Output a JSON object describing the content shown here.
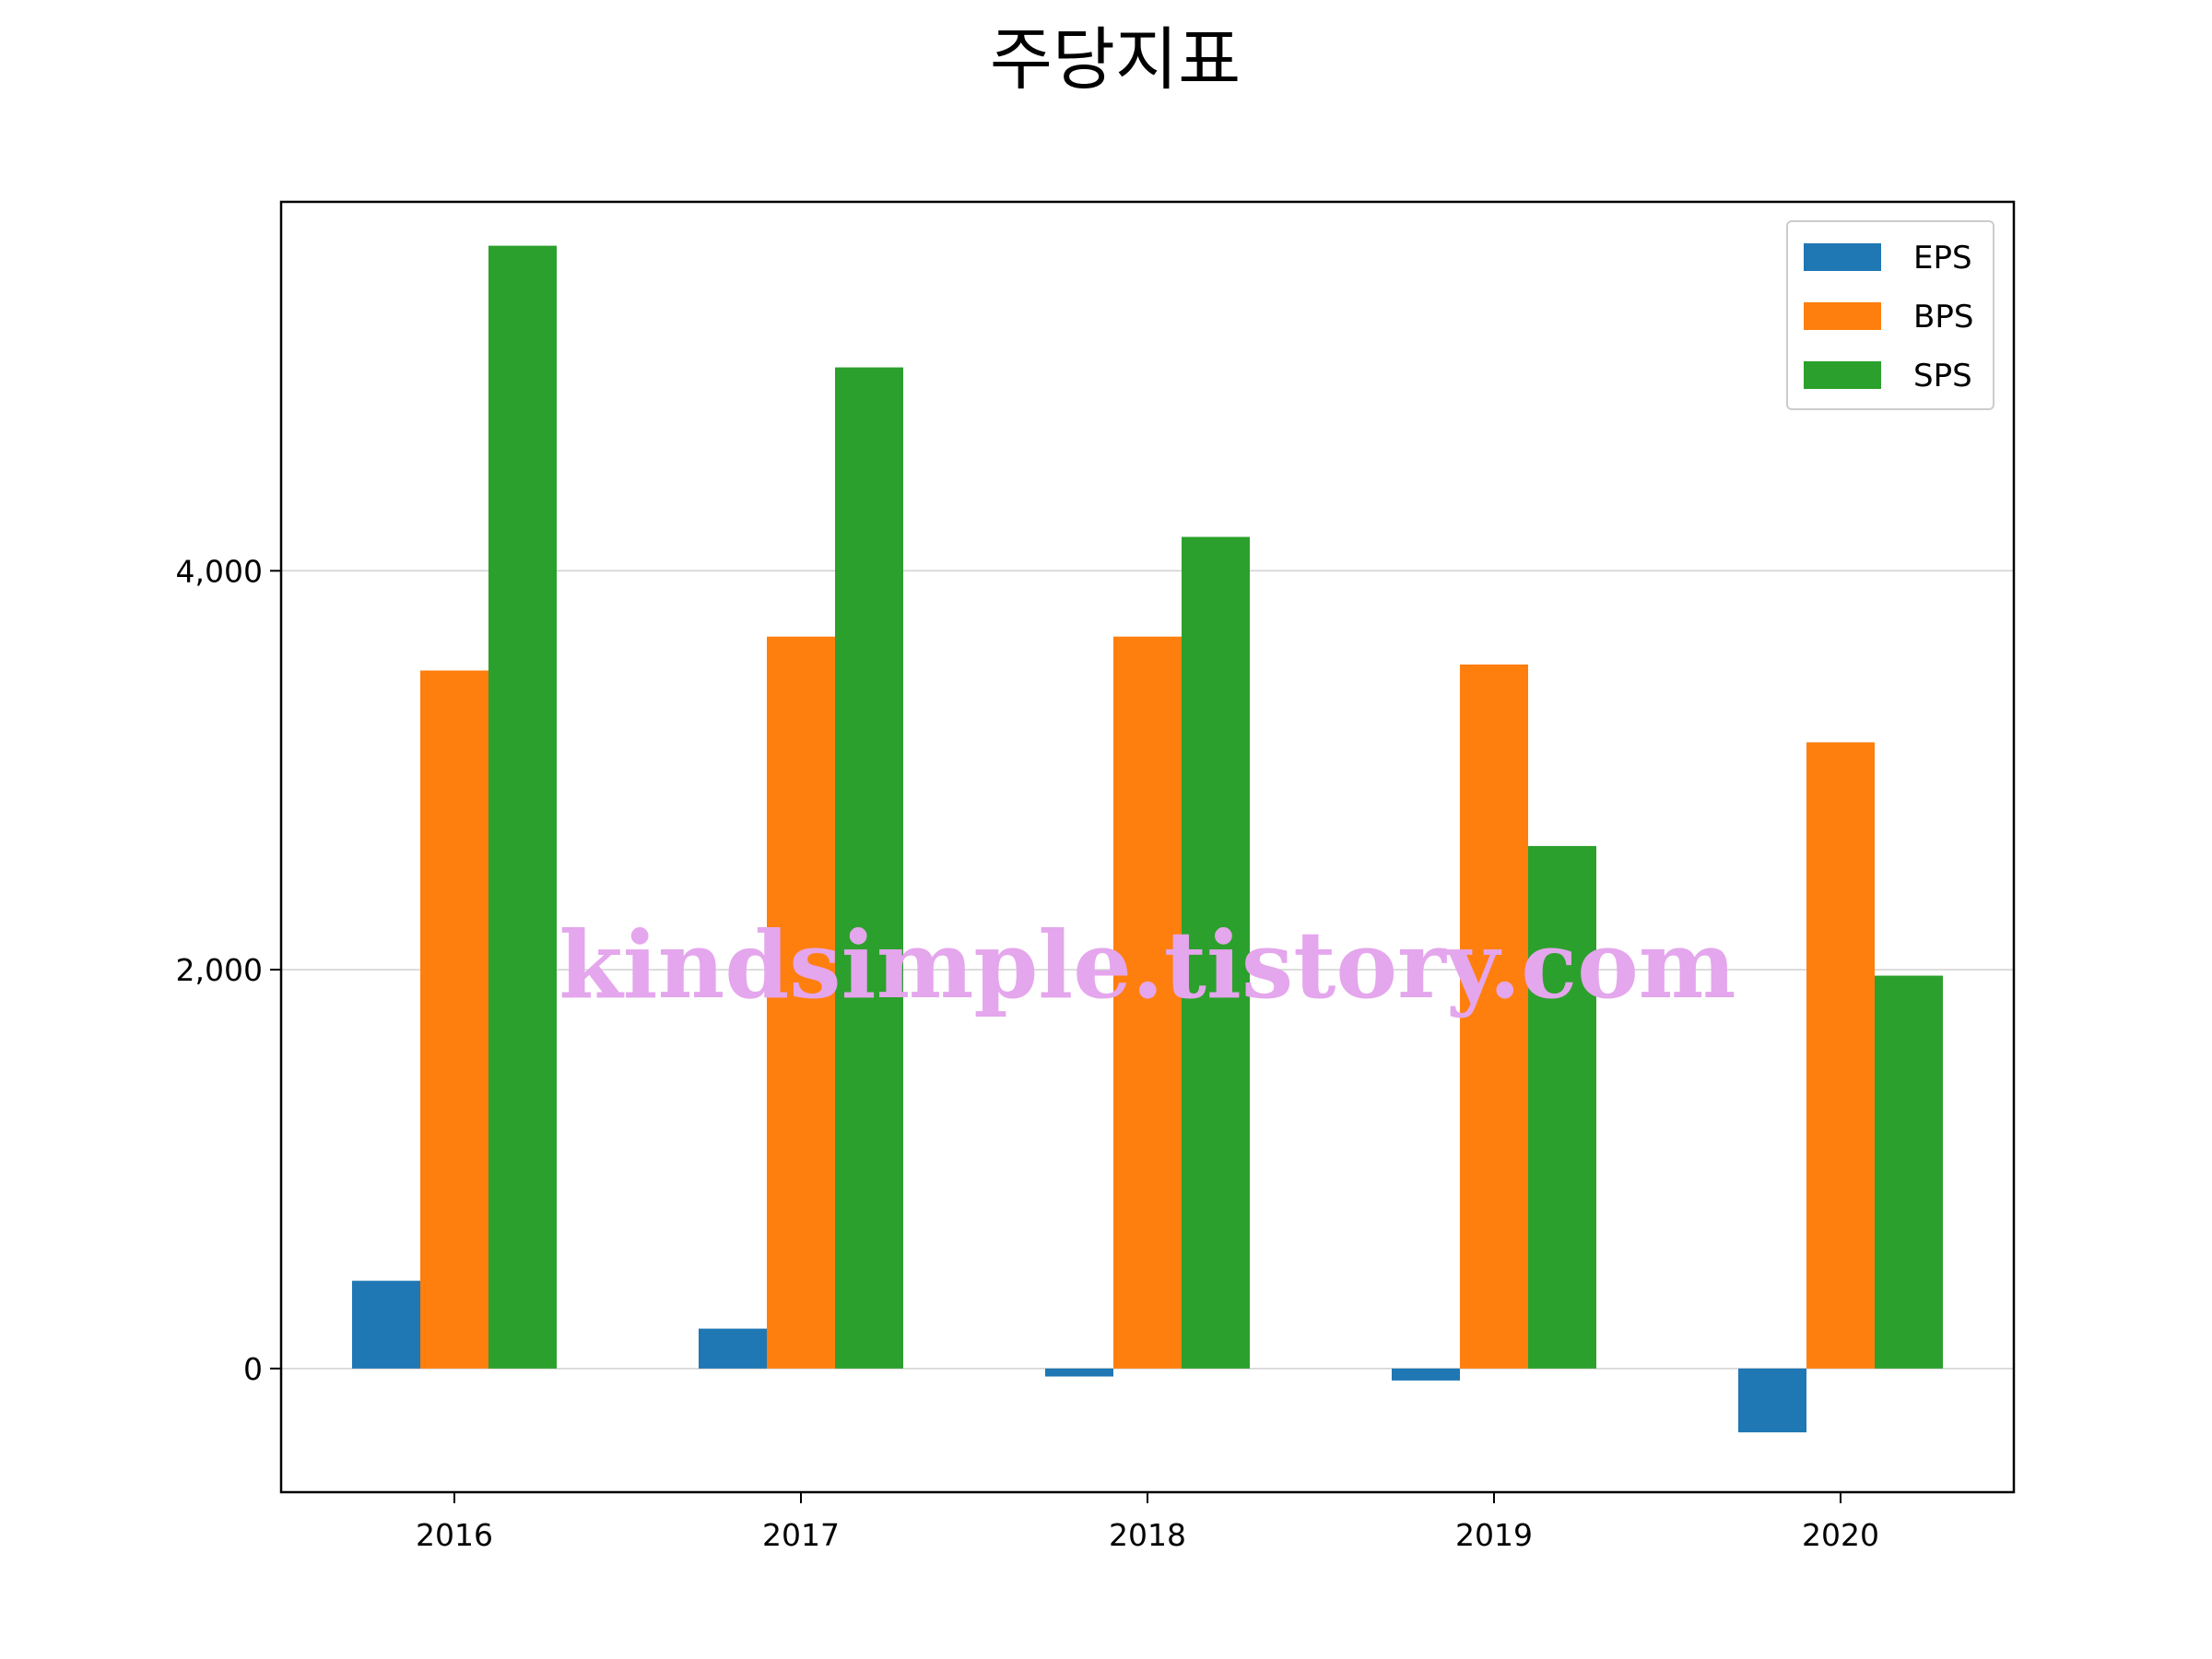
{
  "chart_data": {
    "type": "bar",
    "title": "주당지표",
    "xlabel": "",
    "ylabel": "",
    "categories": [
      "2016",
      "2017",
      "2018",
      "2019",
      "2020"
    ],
    "series": [
      {
        "name": "EPS",
        "color": "#1f77b4",
        "values": [
          440,
          200,
          -40,
          -60,
          -320
        ]
      },
      {
        "name": "BPS",
        "color": "#ff7f0e",
        "values": [
          3500,
          3670,
          3670,
          3530,
          3140
        ]
      },
      {
        "name": "SPS",
        "color": "#2ca02c",
        "values": [
          5630,
          5020,
          4170,
          2620,
          1970
        ]
      }
    ],
    "ylim": [
      -620,
      5850
    ],
    "yticks": [
      0,
      2000,
      4000
    ],
    "ytick_labels": [
      "0",
      "2,000",
      "4,000"
    ],
    "grid": "y-major",
    "legend_position": "upper right",
    "watermark": {
      "text": "kindsimple.tistory.com",
      "color": "#e4a6ec"
    }
  }
}
